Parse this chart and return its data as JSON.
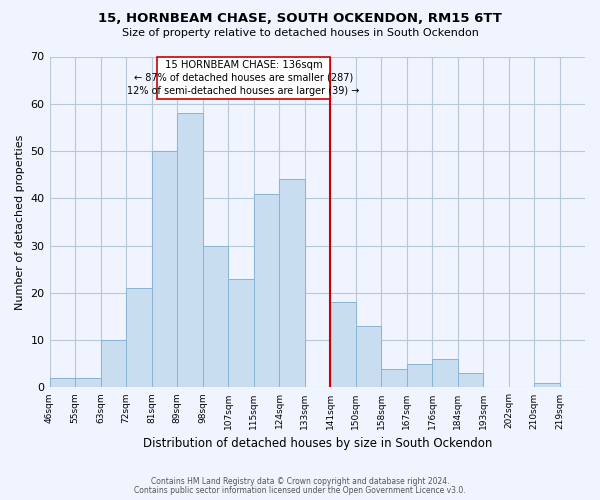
{
  "title1": "15, HORNBEAM CHASE, SOUTH OCKENDON, RM15 6TT",
  "title2": "Size of property relative to detached houses in South Ockendon",
  "xlabel": "Distribution of detached houses by size in South Ockendon",
  "ylabel": "Number of detached properties",
  "bin_labels": [
    "46sqm",
    "55sqm",
    "63sqm",
    "72sqm",
    "81sqm",
    "89sqm",
    "98sqm",
    "107sqm",
    "115sqm",
    "124sqm",
    "133sqm",
    "141sqm",
    "150sqm",
    "158sqm",
    "167sqm",
    "176sqm",
    "184sqm",
    "193sqm",
    "202sqm",
    "210sqm",
    "219sqm"
  ],
  "bar_heights": [
    2,
    2,
    10,
    21,
    50,
    58,
    30,
    23,
    41,
    44,
    0,
    18,
    13,
    4,
    5,
    6,
    3,
    0,
    0,
    1,
    0
  ],
  "bar_color": "#c8ddf0",
  "bar_edge_color": "#8ab4d4",
  "ylim": [
    0,
    70
  ],
  "yticks": [
    0,
    10,
    20,
    30,
    40,
    50,
    60,
    70
  ],
  "marker_line_color": "#cc0000",
  "annotation_title": "15 HORNBEAM CHASE: 136sqm",
  "annotation_line1": "← 87% of detached houses are smaller (287)",
  "annotation_line2": "12% of semi-detached houses are larger (39) →",
  "footnote1": "Contains HM Land Registry data © Crown copyright and database right 2024.",
  "footnote2": "Contains public sector information licensed under the Open Government Licence v3.0.",
  "background_color": "#f0f4ff"
}
